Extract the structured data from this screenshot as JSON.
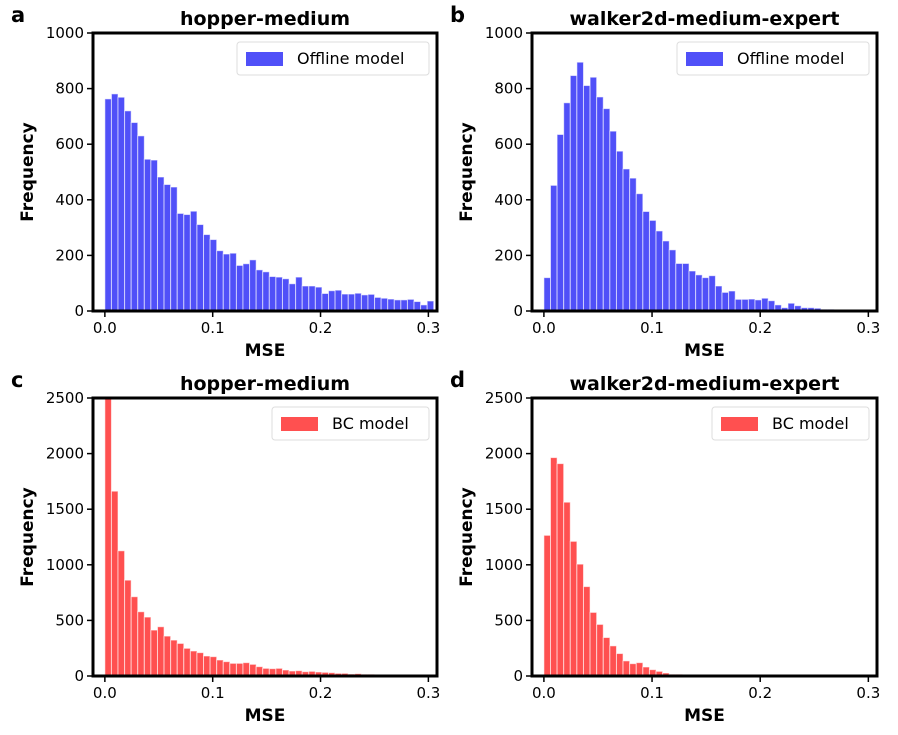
{
  "chart_data": [
    {
      "type": "bar",
      "panel_letter": "a",
      "title": "hopper-medium",
      "xlabel": "MSE",
      "ylabel": "Frequency",
      "xlim": [
        -0.011,
        0.308
      ],
      "ylim": [
        0,
        1000
      ],
      "xticks": [
        0.0,
        0.1,
        0.2,
        0.3
      ],
      "xtick_labels": [
        "0.0",
        "0.1",
        "0.2",
        "0.3"
      ],
      "yticks": [
        0,
        200,
        400,
        600,
        800,
        1000
      ],
      "ytick_labels": [
        "0",
        "200",
        "400",
        "600",
        "800",
        "1000"
      ],
      "bin_start": 0.0,
      "bin_width": 0.0061,
      "legend": "top-right",
      "color": "#5050f8",
      "series": [
        {
          "name": "Offline model",
          "values": [
            763,
            781,
            769,
            720,
            678,
            630,
            546,
            543,
            482,
            455,
            446,
            351,
            347,
            359,
            311,
            275,
            257,
            217,
            205,
            208,
            164,
            170,
            184,
            148,
            141,
            124,
            122,
            116,
            98,
            122,
            90,
            90,
            86,
            63,
            73,
            75,
            61,
            61,
            64,
            58,
            60,
            49,
            46,
            43,
            40,
            40,
            42,
            34,
            22,
            36
          ]
        }
      ]
    },
    {
      "type": "bar",
      "panel_letter": "b",
      "title": "walker2d-medium-expert",
      "xlabel": "MSE",
      "ylabel": "Frequency",
      "xlim": [
        -0.011,
        0.308
      ],
      "ylim": [
        0,
        1000
      ],
      "xticks": [
        0.0,
        0.1,
        0.2,
        0.3
      ],
      "xtick_labels": [
        "0.0",
        "0.1",
        "0.2",
        "0.3"
      ],
      "yticks": [
        0,
        200,
        400,
        600,
        800,
        1000
      ],
      "ytick_labels": [
        "0",
        "200",
        "400",
        "600",
        "800",
        "1000"
      ],
      "bin_start": 0.0,
      "bin_width": 0.0061,
      "legend": "top-right",
      "color": "#5050f8",
      "series": [
        {
          "name": "Offline model",
          "values": [
            120,
            452,
            635,
            749,
            847,
            895,
            811,
            841,
            770,
            728,
            647,
            575,
            511,
            478,
            422,
            358,
            326,
            288,
            252,
            220,
            171,
            171,
            144,
            130,
            120,
            127,
            90,
            67,
            72,
            42,
            42,
            43,
            40,
            46,
            37,
            22,
            12,
            28,
            19,
            12,
            12,
            10,
            6,
            6,
            5,
            4,
            4,
            2,
            2,
            5
          ]
        }
      ]
    },
    {
      "type": "bar",
      "panel_letter": "c",
      "title": "hopper-medium",
      "xlabel": "MSE",
      "ylabel": "Frequency",
      "xlim": [
        -0.011,
        0.308
      ],
      "ylim": [
        0,
        2500
      ],
      "xticks": [
        0.0,
        0.1,
        0.2,
        0.3
      ],
      "xtick_labels": [
        "0.0",
        "0.1",
        "0.2",
        "0.3"
      ],
      "yticks": [
        0,
        500,
        1000,
        1500,
        2000,
        2500
      ],
      "ytick_labels": [
        "0",
        "500",
        "1000",
        "1500",
        "2000",
        "2500"
      ],
      "bin_start": 0.0,
      "bin_width": 0.0061,
      "legend": "top-right",
      "color": "#ff5050",
      "series": [
        {
          "name": "BC model",
          "values": [
            2600,
            1662,
            1126,
            862,
            713,
            578,
            530,
            413,
            443,
            359,
            323,
            293,
            249,
            225,
            210,
            180,
            174,
            144,
            129,
            114,
            114,
            120,
            105,
            84,
            69,
            66,
            69,
            54,
            45,
            48,
            39,
            42,
            36,
            33,
            30,
            24,
            24,
            18,
            21,
            15,
            15,
            12,
            9,
            9,
            9,
            6,
            6,
            3,
            6,
            3
          ]
        }
      ]
    },
    {
      "type": "bar",
      "panel_letter": "d",
      "title": "walker2d-medium-expert",
      "xlabel": "MSE",
      "ylabel": "Frequency",
      "xlim": [
        -0.011,
        0.308
      ],
      "ylim": [
        0,
        2500
      ],
      "xticks": [
        0.0,
        0.1,
        0.2,
        0.3
      ],
      "xtick_labels": [
        "0.0",
        "0.1",
        "0.2",
        "0.3"
      ],
      "yticks": [
        0,
        500,
        1000,
        1500,
        2000,
        2500
      ],
      "ytick_labels": [
        "0",
        "500",
        "1000",
        "1500",
        "2000",
        "2500"
      ],
      "bin_start": 0.0,
      "bin_width": 0.0061,
      "legend": "top-right",
      "color": "#ff5050",
      "series": [
        {
          "name": "BC model",
          "values": [
            1265,
            1964,
            1910,
            1563,
            1211,
            1006,
            804,
            572,
            464,
            346,
            271,
            202,
            136,
            111,
            120,
            81,
            57,
            42,
            27,
            15,
            15,
            6,
            3,
            3,
            2,
            2,
            1,
            1,
            1,
            1,
            1,
            0,
            0,
            0,
            0,
            0,
            0,
            0,
            0,
            0,
            0,
            0,
            0,
            0,
            0,
            0,
            0,
            0,
            0,
            0
          ]
        }
      ]
    }
  ]
}
